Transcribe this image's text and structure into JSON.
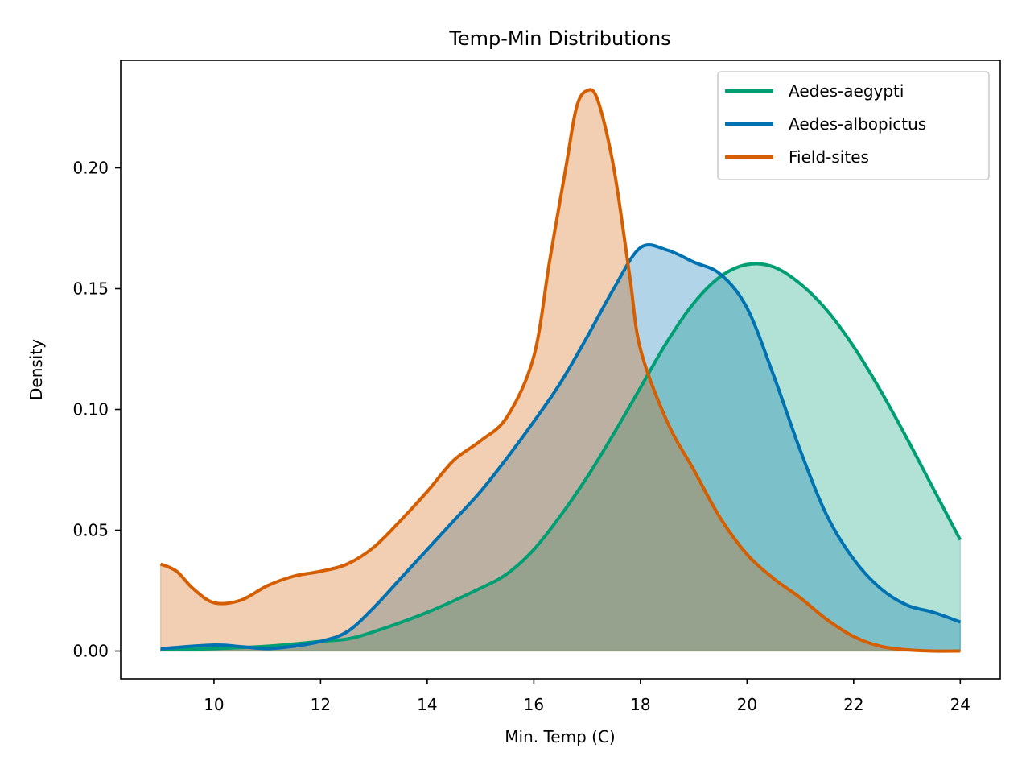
{
  "chart_data": {
    "type": "area",
    "title": "Temp-Min Distributions",
    "xlabel": "Min. Temp (C)",
    "ylabel": "Density",
    "xlim": [
      8.25,
      24.75
    ],
    "ylim": [
      -0.0115,
      0.2445
    ],
    "x_ticks": [
      10,
      12,
      14,
      16,
      18,
      20,
      22,
      24
    ],
    "x_tick_labels": [
      "10",
      "12",
      "14",
      "16",
      "18",
      "20",
      "22",
      "24"
    ],
    "y_ticks": [
      0.0,
      0.05,
      0.1,
      0.15,
      0.2
    ],
    "y_tick_labels": [
      "0.00",
      "0.05",
      "0.10",
      "0.15",
      "0.20"
    ],
    "grid": false,
    "legend_position": "upper right",
    "series": [
      {
        "name": "Aedes-aegypti",
        "color": "#009e73",
        "x": [
          9,
          10,
          11,
          12,
          12.5,
          13,
          14,
          15,
          15.5,
          16,
          16.5,
          17,
          17.5,
          18,
          18.5,
          19,
          19.5,
          20,
          20.5,
          21,
          21.5,
          22,
          22.5,
          23,
          23.5,
          24
        ],
        "y": [
          0.0005,
          0.001,
          0.002,
          0.004,
          0.005,
          0.008,
          0.016,
          0.026,
          0.032,
          0.042,
          0.056,
          0.072,
          0.09,
          0.109,
          0.128,
          0.144,
          0.155,
          0.16,
          0.159,
          0.152,
          0.141,
          0.126,
          0.108,
          0.088,
          0.067,
          0.046
        ]
      },
      {
        "name": "Aedes-albopictus",
        "color": "#0072b2",
        "x": [
          9,
          10,
          10.5,
          11,
          11.5,
          12,
          12.5,
          13,
          13.5,
          14,
          14.5,
          15,
          15.5,
          16,
          16.5,
          17,
          17.5,
          18,
          18.5,
          19,
          19.5,
          20,
          20.5,
          21,
          21.5,
          22,
          22.5,
          23,
          23.5,
          24
        ],
        "y": [
          0.001,
          0.0025,
          0.0018,
          0.001,
          0.002,
          0.004,
          0.008,
          0.018,
          0.03,
          0.042,
          0.054,
          0.066,
          0.08,
          0.095,
          0.111,
          0.13,
          0.15,
          0.167,
          0.166,
          0.161,
          0.156,
          0.142,
          0.114,
          0.083,
          0.056,
          0.038,
          0.026,
          0.019,
          0.016,
          0.012
        ]
      },
      {
        "name": "Field-sites",
        "color": "#d55e00",
        "x": [
          9,
          9.3,
          9.6,
          10,
          10.5,
          11,
          11.5,
          12,
          12.5,
          13,
          13.5,
          14,
          14.5,
          15,
          15.5,
          16,
          16.3,
          16.6,
          16.8,
          17,
          17.2,
          17.5,
          17.8,
          18,
          18.5,
          19,
          19.5,
          20,
          20.5,
          21,
          21.5,
          22,
          22.5,
          23,
          23.5,
          24
        ],
        "y": [
          0.036,
          0.033,
          0.026,
          0.02,
          0.021,
          0.027,
          0.031,
          0.033,
          0.036,
          0.043,
          0.054,
          0.066,
          0.079,
          0.087,
          0.097,
          0.122,
          0.162,
          0.2,
          0.225,
          0.232,
          0.228,
          0.2,
          0.155,
          0.125,
          0.095,
          0.075,
          0.055,
          0.04,
          0.03,
          0.022,
          0.013,
          0.006,
          0.002,
          0.0005,
          0.0,
          0.0
        ]
      }
    ]
  }
}
